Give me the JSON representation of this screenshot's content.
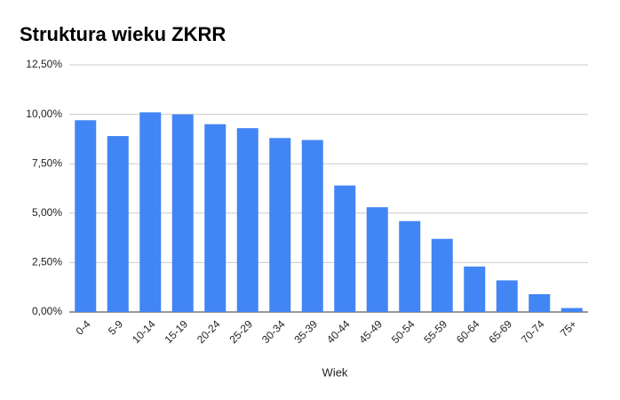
{
  "chart_data": {
    "type": "bar",
    "title": "Struktura wieku ZKRR",
    "x_label": "Wiek",
    "categories": [
      "0-4",
      "5-9",
      "10-14",
      "15-19",
      "20-24",
      "25-29",
      "30-34",
      "35-39",
      "40-44",
      "45-49",
      "50-54",
      "55-59",
      "60-64",
      "65-69",
      "70-74",
      "75+"
    ],
    "values": [
      9.7,
      8.9,
      10.1,
      10.0,
      9.5,
      9.3,
      8.8,
      8.7,
      6.4,
      5.3,
      4.6,
      3.7,
      2.3,
      1.6,
      0.9,
      0.2
    ],
    "color": "#4285f4",
    "ylim": [
      0,
      12.5
    ],
    "yticks": [
      {
        "value": 0,
        "label": "0,00%"
      },
      {
        "value": 2.5,
        "label": "2,50%"
      },
      {
        "value": 5,
        "label": "5,00%"
      },
      {
        "value": 7.5,
        "label": "7,50%"
      },
      {
        "value": 10,
        "label": "10,00%"
      },
      {
        "value": 12.5,
        "label": "12,50%"
      }
    ],
    "grid": true
  }
}
